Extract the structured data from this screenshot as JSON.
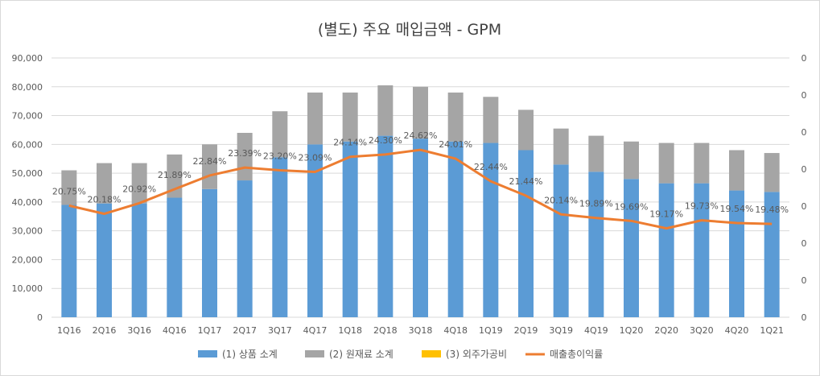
{
  "chart_data": {
    "type": "bar",
    "stacked": true,
    "title": "(별도) 주요 매입금액 - GPM",
    "categories": [
      "1Q16",
      "2Q16",
      "3Q16",
      "4Q16",
      "1Q17",
      "2Q17",
      "3Q17",
      "4Q17",
      "1Q18",
      "2Q18",
      "3Q18",
      "4Q18",
      "1Q19",
      "2Q19",
      "3Q19",
      "4Q19",
      "1Q20",
      "2Q20",
      "3Q20",
      "4Q20",
      "1Q21"
    ],
    "ylim": [
      0,
      90000
    ],
    "y_ticks": [
      "0",
      "10,000",
      "20,000",
      "30,000",
      "40,000",
      "50,000",
      "60,000",
      "70,000",
      "80,000",
      "90,000"
    ],
    "y2_ticks": [
      "0",
      "0",
      "0",
      "0",
      "0",
      "0",
      "0",
      "0"
    ],
    "grid": true,
    "legend_position": "bottom",
    "series": [
      {
        "name": "(1) 상품 소계",
        "type": "bar",
        "color": "#5b9bd5",
        "values": [
          39000,
          39500,
          39500,
          41500,
          44500,
          47500,
          55500,
          60000,
          61000,
          63000,
          62000,
          61000,
          60500,
          58000,
          53000,
          50500,
          48000,
          46500,
          46500,
          44000,
          43500
        ]
      },
      {
        "name": "(2) 원재료 소계",
        "type": "bar",
        "color": "#a5a5a5",
        "values": [
          12000,
          14000,
          14000,
          15000,
          15500,
          16500,
          16000,
          18000,
          17000,
          17500,
          18000,
          17000,
          16000,
          14000,
          12500,
          12500,
          13000,
          14000,
          14000,
          14000,
          13500
        ]
      },
      {
        "name": "(3) 외주가공비",
        "type": "bar",
        "color": "#ffc000",
        "values": [
          0,
          0,
          0,
          0,
          0,
          0,
          0,
          0,
          0,
          0,
          0,
          0,
          0,
          0,
          0,
          0,
          0,
          0,
          0,
          0,
          0
        ]
      },
      {
        "name": "매출총이익률",
        "type": "line",
        "color": "#ed7d31",
        "values": [
          20.75,
          20.18,
          20.92,
          21.89,
          22.84,
          23.39,
          23.2,
          23.09,
          24.14,
          24.3,
          24.62,
          24.01,
          22.44,
          21.44,
          20.14,
          19.89,
          19.69,
          19.17,
          19.73,
          19.54,
          19.48
        ],
        "labels": [
          "20.75%",
          "20.18%",
          "20.92%",
          "21.89%",
          "22.84%",
          "23.39%",
          "23.20%",
          "23.09%",
          "24.14%",
          "24.30%",
          "24.62%",
          "24.01%",
          "22.44%",
          "21.44%",
          "20.14%",
          "19.89%",
          "19.69%",
          "19.17%",
          "19.73%",
          "19.54%",
          "19.48%"
        ]
      }
    ]
  }
}
